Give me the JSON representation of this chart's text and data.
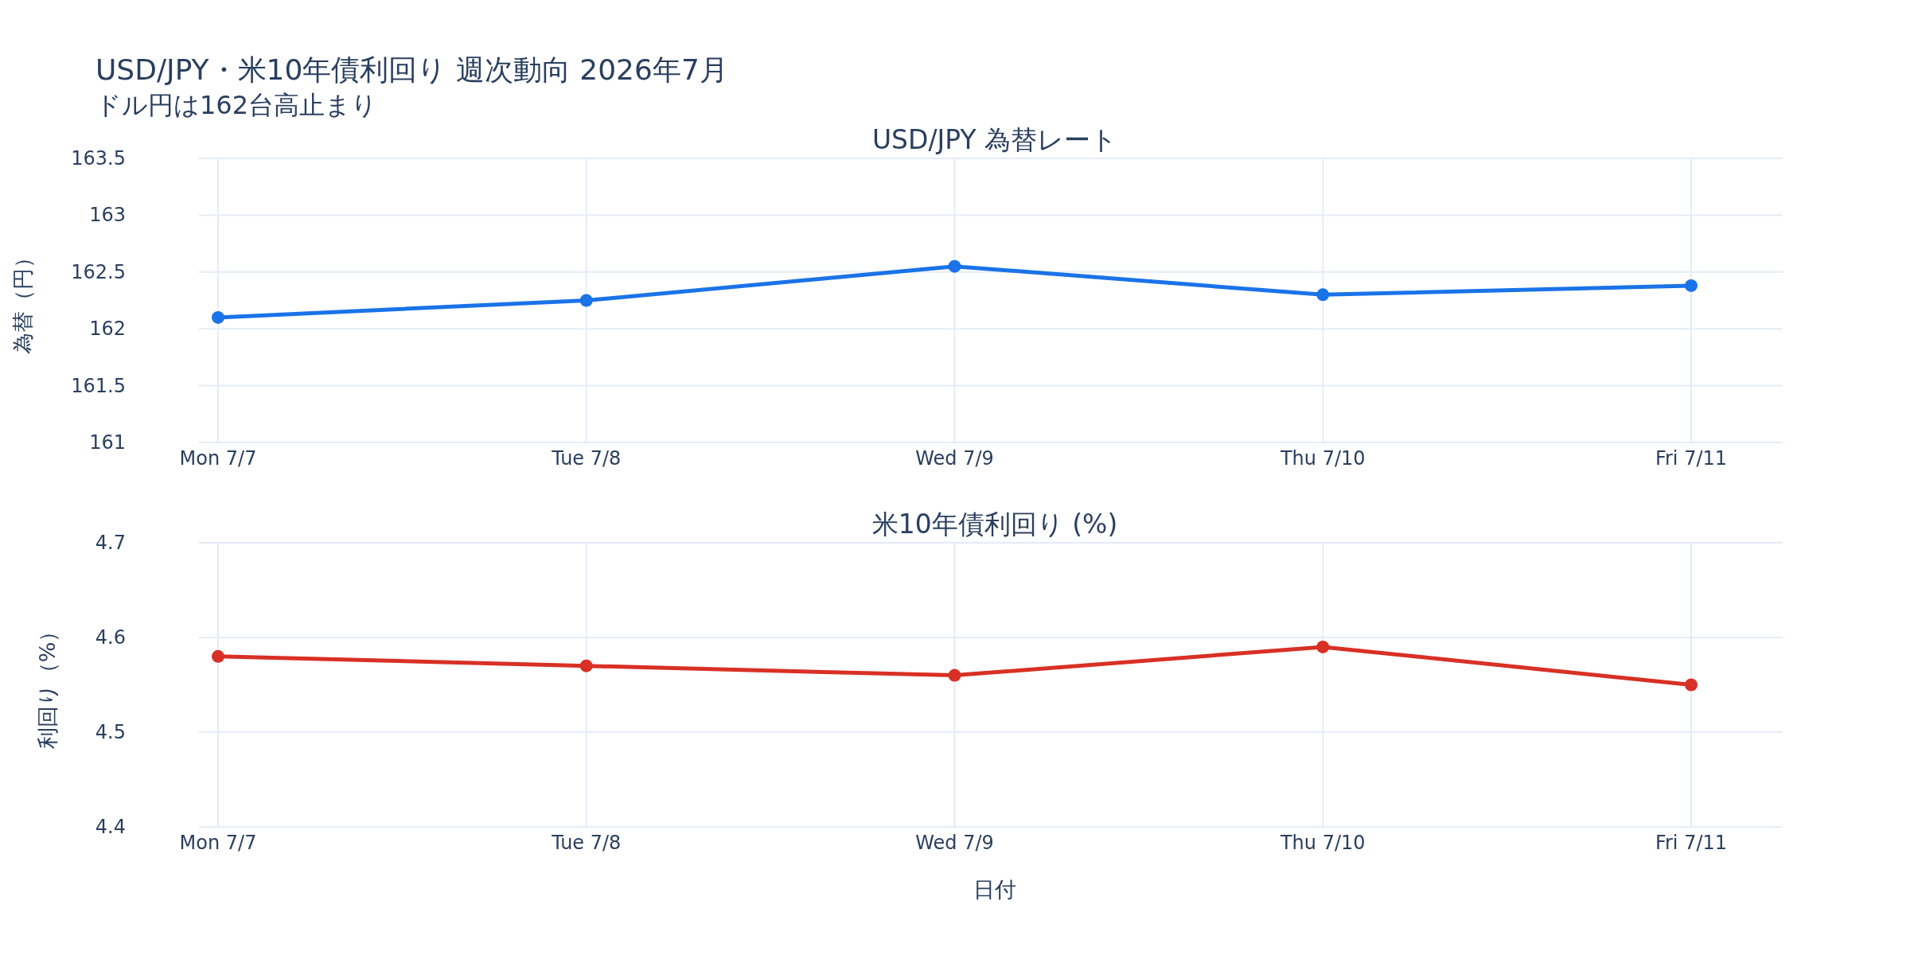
{
  "chart_data": [
    {
      "type": "line",
      "title": "USD/JPY 為替レート",
      "annotations": [
        "USD/JPY・米10年債利回り 週次動向 2026年7月",
        "ドル円は162台高止まり"
      ],
      "ylabel": "為替（円）",
      "categories": [
        "Mon 7/7",
        "Tue 7/8",
        "Wed 7/9",
        "Thu 7/10",
        "Fri 7/11"
      ],
      "series": [
        {
          "color": "#1a73e8",
          "values": [
            162.1,
            162.25,
            162.55,
            162.3,
            162.38
          ]
        }
      ],
      "ylim": [
        161,
        163.5
      ],
      "yticks": [
        161,
        161.5,
        162,
        162.5,
        163,
        163.5
      ],
      "grid": true,
      "marker": "circle"
    },
    {
      "type": "line",
      "title": "米10年債利回り (%)",
      "xlabel": "日付",
      "ylabel": "利回り（%）",
      "categories": [
        "Mon 7/7",
        "Tue 7/8",
        "Wed 7/9",
        "Thu 7/10",
        "Fri 7/11"
      ],
      "series": [
        {
          "color": "#d93025",
          "values": [
            4.58,
            4.57,
            4.56,
            4.59,
            4.55
          ]
        }
      ],
      "ylim": [
        4.4,
        4.7
      ],
      "yticks": [
        4.4,
        4.5,
        4.6,
        4.7
      ],
      "grid": true,
      "marker": "circle"
    }
  ]
}
